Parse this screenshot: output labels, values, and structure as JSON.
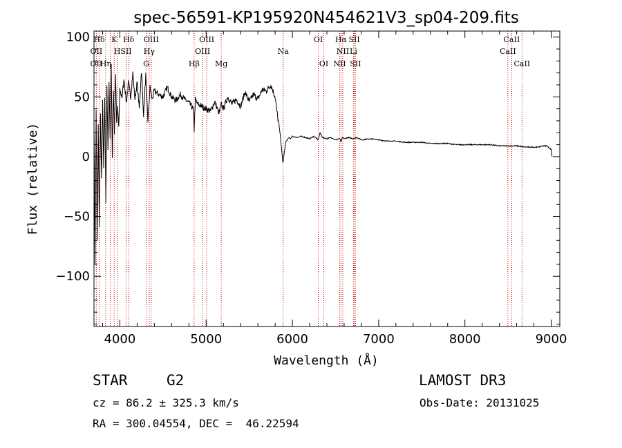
{
  "chart_data": {
    "type": "line",
    "title": "spec-56591-KP195920N454621V3_sp04-209.fits",
    "xlabel": "Wavelength (Å)",
    "ylabel": "Flux (relative)",
    "xlim": [
      3700,
      9100
    ],
    "ylim": [
      -142,
      105
    ],
    "xticks": [
      4000,
      5000,
      6000,
      7000,
      8000,
      9000
    ],
    "xtick_labels": [
      "4000",
      "5000",
      "6000",
      "7000",
      "8000",
      "9000"
    ],
    "yticks": [
      100,
      50,
      0,
      -50,
      -100
    ],
    "ytick_labels": [
      "100",
      "50",
      "0",
      "−50",
      "−100"
    ],
    "x_minor_step": 200,
    "y_minor_step": 10,
    "spectrum": {
      "x": [
        3700,
        3712,
        3725,
        3737,
        3750,
        3762,
        3775,
        3787,
        3800,
        3812,
        3825,
        3837,
        3850,
        3862,
        3875,
        3887,
        3900,
        3912,
        3925,
        3937,
        3950,
        3962,
        3975,
        3987,
        4000,
        4025,
        4050,
        4075,
        4100,
        4125,
        4150,
        4175,
        4200,
        4225,
        4250,
        4275,
        4300,
        4325,
        4350,
        4375,
        4400,
        4450,
        4500,
        4550,
        4600,
        4650,
        4700,
        4750,
        4800,
        4850,
        4861,
        4875,
        4900,
        4950,
        5000,
        5050,
        5100,
        5150,
        5175,
        5200,
        5250,
        5300,
        5350,
        5400,
        5450,
        5500,
        5550,
        5600,
        5650,
        5700,
        5750,
        5800,
        5820,
        5840,
        5860,
        5870,
        5880,
        5890,
        5895,
        5900,
        5910,
        5920,
        5940,
        5960,
        5980,
        6000,
        6050,
        6100,
        6150,
        6200,
        6250,
        6300,
        6320,
        6350,
        6400,
        6450,
        6500,
        6550,
        6563,
        6580,
        6600,
        6650,
        6700,
        6750,
        6800,
        6900,
        7000,
        7100,
        7200,
        7300,
        7400,
        7500,
        7600,
        7700,
        7800,
        7900,
        8000,
        8100,
        8200,
        8300,
        8400,
        8500,
        8600,
        8700,
        8800,
        8850,
        8900,
        8950,
        9000,
        9010
      ],
      "y": [
        30,
        -88,
        40,
        -70,
        25,
        -60,
        35,
        -20,
        45,
        -10,
        50,
        -38,
        60,
        5,
        65,
        15,
        75,
        0,
        55,
        20,
        70,
        30,
        40,
        25,
        55,
        50,
        65,
        45,
        62,
        50,
        70,
        48,
        62,
        40,
        72,
        35,
        68,
        30,
        58,
        48,
        55,
        52,
        50,
        58,
        50,
        47,
        52,
        48,
        45,
        40,
        22,
        48,
        44,
        42,
        40,
        38,
        46,
        36,
        44,
        40,
        50,
        44,
        48,
        42,
        54,
        46,
        52,
        48,
        56,
        55,
        60,
        50,
        38,
        28,
        18,
        10,
        2,
        -5,
        -3,
        0,
        5,
        12,
        14,
        16,
        15,
        17,
        16,
        17,
        16,
        15,
        17,
        14,
        20,
        16,
        15,
        16,
        14,
        15,
        12,
        16,
        15,
        16,
        15,
        16,
        14,
        15,
        14,
        13,
        13,
        12,
        12,
        12,
        11,
        11,
        11,
        10,
        10,
        10,
        10,
        10,
        9,
        9,
        9,
        8,
        8,
        8,
        9,
        9,
        6,
        0
      ]
    },
    "lines": [
      {
        "label": "Hδ",
        "x": 3760,
        "row": 0
      },
      {
        "label": "K",
        "x": 3934,
        "row": 0
      },
      {
        "label": "Hδ",
        "x": 4102,
        "row": 0
      },
      {
        "label": "OIII",
        "x": 4363,
        "row": 0
      },
      {
        "label": "OIII",
        "x": 5007,
        "row": 0
      },
      {
        "label": "OI",
        "x": 6300,
        "row": 0
      },
      {
        "label": "Hα",
        "x": 6563,
        "row": 0
      },
      {
        "label": "SII",
        "x": 6717,
        "row": 0
      },
      {
        "label": "CaII",
        "x": 8542,
        "row": 0
      },
      {
        "label": "OII",
        "x": 3727,
        "row": 1
      },
      {
        "label": "H",
        "x": 3970,
        "row": 1
      },
      {
        "label": "SII",
        "x": 4072,
        "row": 1
      },
      {
        "label": "Hγ",
        "x": 4340,
        "row": 1
      },
      {
        "label": "OIII",
        "x": 4959,
        "row": 1
      },
      {
        "label": "Na",
        "x": 5893,
        "row": 1
      },
      {
        "label": "NII",
        "x": 6584,
        "row": 1
      },
      {
        "label": "Li",
        "x": 6708,
        "row": 1
      },
      {
        "label": "CaII",
        "x": 8498,
        "row": 1
      },
      {
        "label": "OII",
        "x": 3727,
        "row": 2
      },
      {
        "label": "Hη",
        "x": 3835,
        "row": 2
      },
      {
        "label": "G",
        "x": 4305,
        "row": 2
      },
      {
        "label": "Hβ",
        "x": 4861,
        "row": 2
      },
      {
        "label": "Mg",
        "x": 5175,
        "row": 2
      },
      {
        "label": "OI",
        "x": 6364,
        "row": 2
      },
      {
        "label": "NII",
        "x": 6548,
        "row": 2
      },
      {
        "label": "SII",
        "x": 6731,
        "row": 2
      },
      {
        "label": "CaII",
        "x": 8662,
        "row": 2
      }
    ],
    "marker_lines_x": [
      3727,
      3760,
      3835,
      3889,
      3934,
      3970,
      4072,
      4102,
      4305,
      4340,
      4363,
      4861,
      4959,
      5007,
      5175,
      5893,
      6300,
      6364,
      6548,
      6563,
      6584,
      6708,
      6717,
      6731,
      8498,
      8542,
      8662
    ],
    "colors": {
      "spectrum": "#000000",
      "markers": "#cc0000",
      "axes": "#000000",
      "background": "#ffffff"
    }
  },
  "info": {
    "object_class": "STAR",
    "subclass": "G2",
    "survey": "LAMOST DR3",
    "cz": "cz = 86.2 ± 325.3 km/s",
    "obs_date": "Obs-Date: 20131025",
    "coords": "RA = 300.04554, DEC =  46.22594"
  }
}
